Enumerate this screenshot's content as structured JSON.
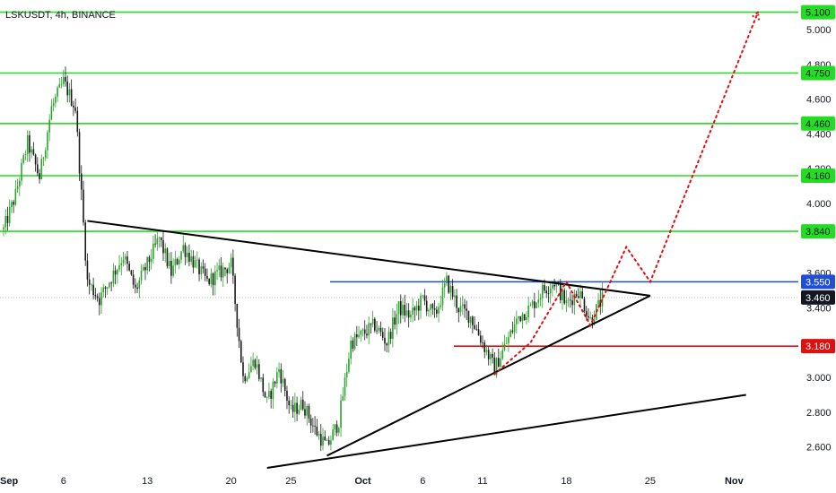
{
  "chart_data": {
    "type": "candlestick",
    "title": "LSKUSDT, 4h, BINANCE",
    "x_labels": [
      "Sep",
      "6",
      "13",
      "20",
      "25",
      "Oct",
      "6",
      "11",
      "18",
      "25",
      "Nov"
    ],
    "y_ticks": [
      "2.600",
      "2.800",
      "3.000",
      "3.400",
      "3.600",
      "4.000",
      "4.200",
      "4.400",
      "4.600",
      "4.800",
      "5.000"
    ],
    "ylim": [
      2.48,
      5.17
    ],
    "last_price": "3.460",
    "levels": [
      {
        "label": "5.100",
        "value": 5.1,
        "color": "#22dd22"
      },
      {
        "label": "4.750",
        "value": 4.75,
        "color": "#22dd22"
      },
      {
        "label": "4.460",
        "value": 4.46,
        "color": "#22dd22"
      },
      {
        "label": "4.160",
        "value": 4.16,
        "color": "#22dd22"
      },
      {
        "label": "3.840",
        "value": 3.84,
        "color": "#22dd22"
      },
      {
        "label": "3.550",
        "value": 3.55,
        "color": "#1f4fd8"
      },
      {
        "label": "3.180",
        "value": 3.18,
        "color": "#e01010"
      }
    ],
    "colors": {
      "up": "#2aa52a",
      "down": "#1a1a1a",
      "trendline": "#000000",
      "projection": "#e01010",
      "last_price": "#131722"
    },
    "price_path": [
      {
        "d": "Sep 1",
        "p": 3.85
      },
      {
        "d": "Sep 2",
        "p": 4.05
      },
      {
        "d": "Sep 3",
        "p": 4.35
      },
      {
        "d": "Sep 4",
        "p": 4.15
      },
      {
        "d": "Sep 5",
        "p": 4.55
      },
      {
        "d": "Sep 6",
        "p": 4.7
      },
      {
        "d": "Sep 7",
        "p": 4.55
      },
      {
        "d": "Sep 8",
        "p": 3.55
      },
      {
        "d": "Sep 9",
        "p": 3.45
      },
      {
        "d": "Sep 11",
        "p": 3.7
      },
      {
        "d": "Sep 12",
        "p": 3.5
      },
      {
        "d": "Sep 14",
        "p": 3.8
      },
      {
        "d": "Sep 15",
        "p": 3.6
      },
      {
        "d": "Sep 16",
        "p": 3.75
      },
      {
        "d": "Sep 18",
        "p": 3.55
      },
      {
        "d": "Sep 20",
        "p": 3.65
      },
      {
        "d": "Sep 21",
        "p": 3.0
      },
      {
        "d": "Sep 22",
        "p": 3.1
      },
      {
        "d": "Sep 23",
        "p": 2.85
      },
      {
        "d": "Sep 24",
        "p": 3.05
      },
      {
        "d": "Sep 25",
        "p": 2.8
      },
      {
        "d": "Sep 26",
        "p": 2.85
      },
      {
        "d": "Sep 27",
        "p": 2.7
      },
      {
        "d": "Sep 28",
        "p": 2.6
      },
      {
        "d": "Sep 29",
        "p": 2.75
      },
      {
        "d": "Sep 30",
        "p": 3.2
      },
      {
        "d": "Oct 1",
        "p": 3.25
      },
      {
        "d": "Oct 2",
        "p": 3.3
      },
      {
        "d": "Oct 3",
        "p": 3.2
      },
      {
        "d": "Oct 4",
        "p": 3.4
      },
      {
        "d": "Oct 5",
        "p": 3.35
      },
      {
        "d": "Oct 6",
        "p": 3.45
      },
      {
        "d": "Oct 7",
        "p": 3.35
      },
      {
        "d": "Oct 8",
        "p": 3.55
      },
      {
        "d": "Oct 9",
        "p": 3.4
      },
      {
        "d": "Oct 10",
        "p": 3.35
      },
      {
        "d": "Oct 11",
        "p": 3.2
      },
      {
        "d": "Oct 12",
        "p": 3.05
      },
      {
        "d": "Oct 13",
        "p": 3.2
      },
      {
        "d": "Oct 14",
        "p": 3.35
      },
      {
        "d": "Oct 15",
        "p": 3.4
      },
      {
        "d": "Oct 16",
        "p": 3.5
      },
      {
        "d": "Oct 17",
        "p": 3.55
      },
      {
        "d": "Oct 18",
        "p": 3.42
      },
      {
        "d": "Oct 19",
        "p": 3.5
      },
      {
        "d": "Oct 20",
        "p": 3.33
      },
      {
        "d": "Oct 21",
        "p": 3.45
      }
    ],
    "trendlines": [
      {
        "name": "upper",
        "points": [
          {
            "d": "Sep 8",
            "p": 3.9
          },
          {
            "d": "Oct 25",
            "p": 3.47
          }
        ]
      },
      {
        "name": "lower",
        "points": [
          {
            "d": "Sep 28",
            "p": 2.55
          },
          {
            "d": "Oct 25",
            "p": 3.47
          }
        ]
      },
      {
        "name": "long-support",
        "points": [
          {
            "d": "Sep 23",
            "p": 2.48
          },
          {
            "d": "Nov 2",
            "p": 2.9
          }
        ]
      }
    ],
    "projection": [
      {
        "d": "Oct 12",
        "p": 3.02
      },
      {
        "d": "Oct 15",
        "p": 3.2
      },
      {
        "d": "Oct 18",
        "p": 3.55
      },
      {
        "d": "Oct 20",
        "p": 3.3
      },
      {
        "d": "Oct 23",
        "p": 3.75
      },
      {
        "d": "Oct 25",
        "p": 3.55
      },
      {
        "d": "Nov 3",
        "p": 5.1
      }
    ]
  }
}
